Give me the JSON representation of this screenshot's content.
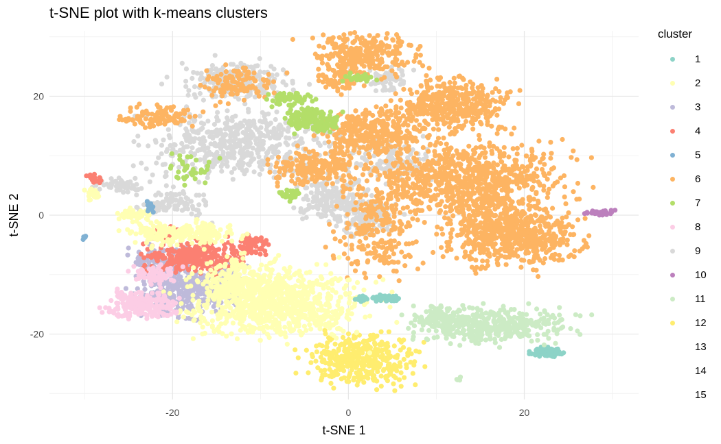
{
  "chart_data": {
    "type": "scatter",
    "title": "t-SNE plot with k-means clusters",
    "xlabel": "t-SNE 1",
    "ylabel": "t-SNE 2",
    "xlim": [
      -34,
      33
    ],
    "ylim": [
      -31,
      31
    ],
    "x_ticks": [
      -20,
      0,
      20
    ],
    "x_tick_labels": [
      "-20",
      "0",
      "20"
    ],
    "y_ticks": [
      -20,
      0,
      20
    ],
    "y_tick_labels": [
      "-20",
      "0",
      "20"
    ],
    "grid": true,
    "legend": {
      "title": "cluster",
      "position": "right"
    },
    "series": [
      {
        "name": "1",
        "color": "#8DD3C7",
        "blobs": [
          [
            22.5,
            -23,
            1.3,
            0.6,
            1.0
          ],
          [
            4.5,
            -14,
            1.5,
            0.5,
            0.6
          ],
          [
            1.5,
            -14,
            0.8,
            0.4,
            0.3
          ]
        ]
      },
      {
        "name": "2",
        "color": "#FFFFB3",
        "blobs": [
          [
            -8.5,
            -14.5,
            8.5,
            5.2,
            10
          ],
          [
            -19,
            -3,
            5.5,
            1.8,
            2.4
          ],
          [
            -13,
            -11,
            2.5,
            4,
            1.5
          ],
          [
            -24.5,
            0,
            2,
            0.8,
            0.6
          ],
          [
            -29,
            3.5,
            0.7,
            0.8,
            0.3
          ]
        ]
      },
      {
        "name": "3",
        "color": "#BEBADA",
        "blobs": [
          [
            -18.5,
            -12.5,
            5,
            4,
            4.2
          ],
          [
            -21.5,
            -7.5,
            3,
            2,
            1.2
          ],
          [
            -14,
            -10,
            1.5,
            1.5,
            0.5
          ]
        ]
      },
      {
        "name": "4",
        "color": "#FB8072",
        "blobs": [
          [
            -17.5,
            -7,
            4.8,
            2.3,
            3.2
          ],
          [
            -11,
            -5,
            2,
            1.5,
            0.6
          ],
          [
            -21,
            -3,
            1.5,
            0.8,
            0.3
          ],
          [
            -29,
            6,
            0.8,
            0.8,
            0.2
          ]
        ]
      },
      {
        "name": "5",
        "color": "#80B1D3",
        "blobs": [
          [
            -22.5,
            1.5,
            0.4,
            0.9,
            0.2
          ],
          [
            -30,
            -3.8,
            0.3,
            0.3,
            0.05
          ]
        ]
      },
      {
        "name": "6",
        "color": "#FDB462",
        "blobs": [
          [
            18.5,
            -3,
            6.5,
            4.8,
            7
          ],
          [
            13.5,
            6,
            9.5,
            5.5,
            9
          ],
          [
            12,
            18.5,
            5.5,
            4,
            4.5
          ],
          [
            3,
            14,
            5,
            3.5,
            3.5
          ],
          [
            2,
            27,
            5,
            3.3,
            3
          ],
          [
            -3.5,
            8,
            4.5,
            2.5,
            2.5
          ],
          [
            -21.5,
            16.5,
            4,
            1.6,
            1.2
          ],
          [
            3.5,
            -2,
            4,
            7,
            2.5
          ],
          [
            -13,
            22,
            4,
            2.5,
            1.2
          ],
          [
            -1,
            23,
            2,
            2,
            0.8
          ]
        ]
      },
      {
        "name": "7",
        "color": "#B3DE69",
        "blobs": [
          [
            -4,
            16,
            2.6,
            1.6,
            1.8
          ],
          [
            -6.5,
            19.5,
            2.5,
            1.3,
            0.6
          ],
          [
            -6.5,
            3.5,
            1,
            0.8,
            0.3
          ],
          [
            1.2,
            23,
            1.5,
            0.6,
            0.3
          ],
          [
            -18,
            8,
            2.5,
            2,
            0.4
          ]
        ]
      },
      {
        "name": "8",
        "color": "#FCCDE5",
        "blobs": [
          [
            -23.5,
            -15,
            3.3,
            2,
            2.2
          ],
          [
            -22,
            -10,
            2.5,
            1.5,
            0.7
          ]
        ]
      },
      {
        "name": "9",
        "color": "#D9D9D9",
        "blobs": [
          [
            -12,
            12,
            9,
            5,
            6
          ],
          [
            -13,
            22.5,
            5.5,
            2.8,
            2.5
          ],
          [
            -2,
            3,
            3.5,
            3.5,
            2
          ],
          [
            2,
            0,
            3,
            3,
            1.6
          ],
          [
            -20,
            2,
            3.5,
            2,
            1
          ],
          [
            -26,
            5,
            2.5,
            1,
            0.6
          ],
          [
            5,
            9,
            4,
            3,
            1.5
          ],
          [
            4.5,
            23,
            2,
            2,
            0.6
          ]
        ]
      },
      {
        "name": "10",
        "color": "#BC80BD",
        "blobs": [
          [
            28.5,
            0.4,
            1.6,
            0.35,
            0.4
          ]
        ]
      },
      {
        "name": "11",
        "color": "#CCEBC5",
        "blobs": [
          [
            16.5,
            -18.5,
            7.5,
            2.6,
            4.5
          ],
          [
            10.5,
            -17.5,
            2.5,
            2,
            0.8
          ],
          [
            12.5,
            -27.5,
            0.4,
            0.4,
            0.05
          ]
        ]
      },
      {
        "name": "12",
        "color": "#FFED6F",
        "blobs": [
          [
            1.5,
            -24.5,
            5.2,
            3.6,
            4.2
          ]
        ]
      },
      {
        "name": "13",
        "color": "#ffffff",
        "blobs": []
      },
      {
        "name": "14",
        "color": "#ffffff",
        "blobs": []
      },
      {
        "name": "15",
        "color": "#ffffff",
        "blobs": []
      }
    ]
  }
}
